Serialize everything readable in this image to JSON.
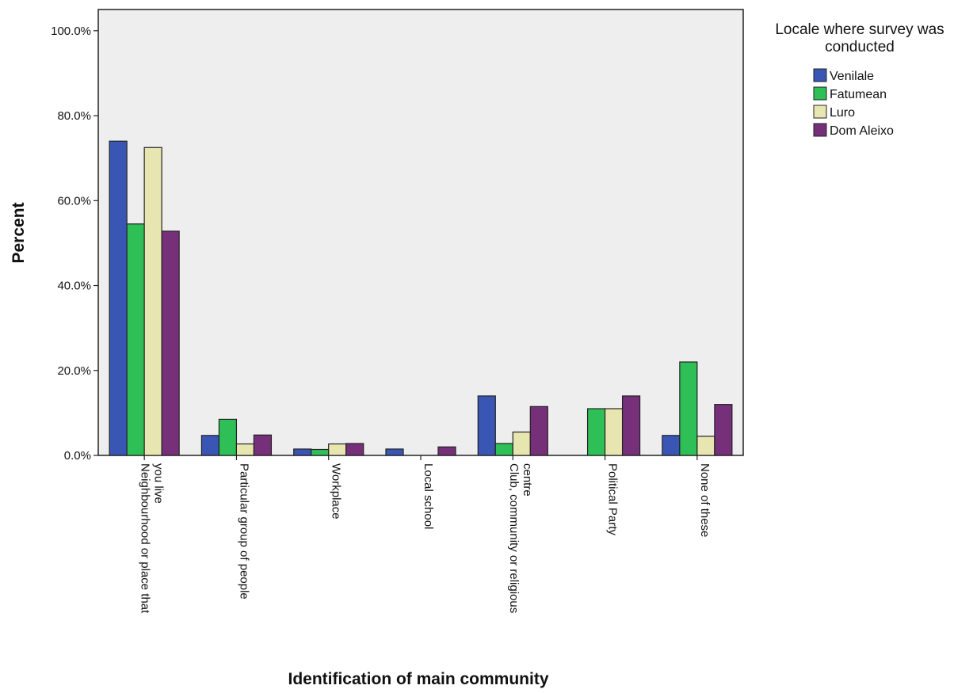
{
  "chart_data": {
    "type": "bar",
    "xlabel": "Identification of main community",
    "ylabel": "Percent",
    "ylim": [
      0,
      105
    ],
    "yticks": [
      "0.0%",
      "20.0%",
      "40.0%",
      "60.0%",
      "80.0%",
      "100.0%"
    ],
    "ytick_values": [
      0,
      20,
      40,
      60,
      80,
      100
    ],
    "grid": false,
    "legend_title": "Locale where survey was conducted",
    "legend_position": "top-right, outside plot",
    "categories": [
      [
        "Neighbourhood or place that",
        "you live"
      ],
      [
        "Particular group of people"
      ],
      [
        "Workplace"
      ],
      [
        "Local school"
      ],
      [
        "Club, community or religious",
        "centre"
      ],
      [
        "Political Party"
      ],
      [
        "None of these"
      ]
    ],
    "series": [
      {
        "name": "Venilale",
        "color": "#3a56b5",
        "values": [
          74.0,
          4.7,
          1.5,
          1.5,
          14.0,
          0.0,
          4.7
        ]
      },
      {
        "name": "Fatumean",
        "color": "#2fbf57",
        "values": [
          54.5,
          8.5,
          1.4,
          0.0,
          2.8,
          11.0,
          22.0
        ]
      },
      {
        "name": "Luro",
        "color": "#e8e6b0",
        "values": [
          72.5,
          2.7,
          2.7,
          0.0,
          5.5,
          11.0,
          4.5
        ]
      },
      {
        "name": "Dom Aleixo",
        "color": "#76307a",
        "values": [
          52.8,
          4.8,
          2.8,
          2.0,
          11.5,
          14.0,
          12.0
        ]
      }
    ],
    "plot_background": "#eeeeee"
  }
}
